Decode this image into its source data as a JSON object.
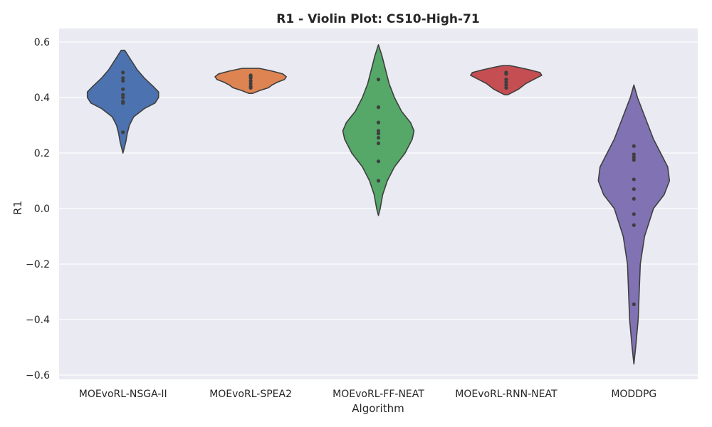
{
  "chart_data": {
    "type": "violin",
    "title": "R1 - Violin Plot: CS10-High-71",
    "xlabel": "Algorithm",
    "ylabel": "R1",
    "ylim": [
      -0.62,
      0.62
    ],
    "yticks": [
      0.6,
      0.4,
      0.2,
      0.0,
      -0.2,
      -0.4,
      -0.6
    ],
    "ytick_labels": [
      "0.6",
      "0.4",
      "0.2",
      "0.0",
      "−0.2",
      "−0.4",
      "−0.6"
    ],
    "grid": true,
    "legend": "none",
    "inner": "point",
    "categories": [
      "MOEvoRL-NSGA-II",
      "MOEvoRL-SPEA2",
      "MOEvoRL-FF-NEAT",
      "MOEvoRL-RNN-NEAT",
      "MODDPG"
    ],
    "series": [
      {
        "color": "#4c72b0",
        "points": [
          0.49,
          0.47,
          0.46,
          0.43,
          0.41,
          0.4,
          0.385,
          0.38,
          0.275
        ],
        "range": [
          0.2,
          0.57
        ],
        "profile": [
          [
            0.2,
            0.0
          ],
          [
            0.22,
            0.04
          ],
          [
            0.24,
            0.08
          ],
          [
            0.27,
            0.12
          ],
          [
            0.3,
            0.18
          ],
          [
            0.33,
            0.3
          ],
          [
            0.36,
            0.6
          ],
          [
            0.38,
            0.9
          ],
          [
            0.4,
            1.0
          ],
          [
            0.42,
            1.0
          ],
          [
            0.44,
            0.85
          ],
          [
            0.47,
            0.6
          ],
          [
            0.5,
            0.4
          ],
          [
            0.53,
            0.25
          ],
          [
            0.55,
            0.15
          ],
          [
            0.57,
            0.05
          ]
        ]
      },
      {
        "color": "#dd8452",
        "points": [
          0.48,
          0.475,
          0.47,
          0.46,
          0.45,
          0.44,
          0.435
        ],
        "range": [
          0.415,
          0.505
        ],
        "profile": [
          [
            0.415,
            0.05
          ],
          [
            0.425,
            0.25
          ],
          [
            0.435,
            0.5
          ],
          [
            0.445,
            0.6
          ],
          [
            0.455,
            0.75
          ],
          [
            0.465,
            0.95
          ],
          [
            0.475,
            1.0
          ],
          [
            0.485,
            0.9
          ],
          [
            0.495,
            0.6
          ],
          [
            0.505,
            0.25
          ]
        ]
      },
      {
        "color": "#55a868",
        "points": [
          0.465,
          0.365,
          0.31,
          0.28,
          0.27,
          0.255,
          0.235,
          0.17,
          0.1
        ],
        "range": [
          -0.025,
          0.59
        ],
        "profile": [
          [
            -0.025,
            0.0
          ],
          [
            0.0,
            0.05
          ],
          [
            0.05,
            0.12
          ],
          [
            0.1,
            0.25
          ],
          [
            0.15,
            0.45
          ],
          [
            0.2,
            0.75
          ],
          [
            0.25,
            0.95
          ],
          [
            0.28,
            1.0
          ],
          [
            0.31,
            0.9
          ],
          [
            0.35,
            0.65
          ],
          [
            0.4,
            0.45
          ],
          [
            0.45,
            0.3
          ],
          [
            0.5,
            0.2
          ],
          [
            0.55,
            0.1
          ],
          [
            0.59,
            0.0
          ]
        ]
      },
      {
        "color": "#c44e52",
        "points": [
          0.49,
          0.485,
          0.465,
          0.455,
          0.445,
          0.435
        ],
        "range": [
          0.41,
          0.515
        ],
        "profile": [
          [
            0.41,
            0.05
          ],
          [
            0.42,
            0.2
          ],
          [
            0.43,
            0.35
          ],
          [
            0.44,
            0.45
          ],
          [
            0.45,
            0.55
          ],
          [
            0.46,
            0.7
          ],
          [
            0.47,
            0.85
          ],
          [
            0.48,
            1.0
          ],
          [
            0.49,
            0.95
          ],
          [
            0.5,
            0.65
          ],
          [
            0.51,
            0.3
          ],
          [
            0.515,
            0.1
          ]
        ]
      },
      {
        "color": "#8172b3",
        "points": [
          0.225,
          0.195,
          0.185,
          0.175,
          0.105,
          0.07,
          0.035,
          -0.02,
          -0.06,
          -0.345
        ],
        "range": [
          -0.56,
          0.445
        ],
        "profile": [
          [
            -0.56,
            0.0
          ],
          [
            -0.5,
            0.05
          ],
          [
            -0.4,
            0.12
          ],
          [
            -0.3,
            0.15
          ],
          [
            -0.2,
            0.18
          ],
          [
            -0.1,
            0.3
          ],
          [
            0.0,
            0.55
          ],
          [
            0.05,
            0.85
          ],
          [
            0.1,
            1.0
          ],
          [
            0.15,
            0.95
          ],
          [
            0.2,
            0.75
          ],
          [
            0.25,
            0.55
          ],
          [
            0.3,
            0.4
          ],
          [
            0.35,
            0.25
          ],
          [
            0.4,
            0.1
          ],
          [
            0.445,
            0.0
          ]
        ]
      }
    ]
  }
}
